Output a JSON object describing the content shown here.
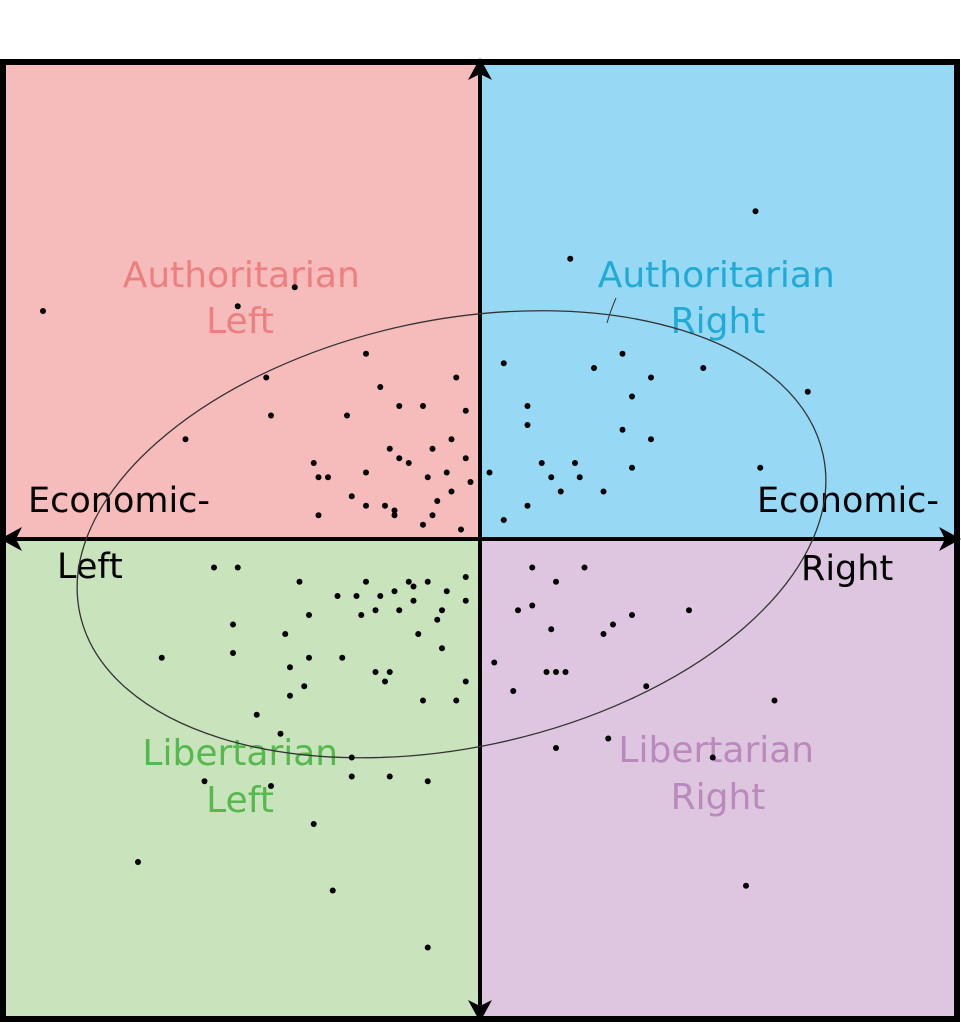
{
  "quadrants": {
    "auth_left": {
      "line1": "Authoritarian",
      "line2": "Left",
      "fill": "#f6bbbb",
      "text_color": "#ee7f7f"
    },
    "auth_right": {
      "line1": "Authoritarian",
      "line2": "Right",
      "fill": "#97d8f5",
      "text_color": "#22aad6"
    },
    "lib_left": {
      "line1": "Libertarian",
      "line2": "Left",
      "fill": "#c9e3bd",
      "text_color": "#55b94d"
    },
    "lib_right": {
      "line1": "Libertarian",
      "line2": "Right",
      "fill": "#dec6e1",
      "text_color": "#b98abb"
    }
  },
  "axes": {
    "left_line1": "Economic-",
    "left_line2": "Left",
    "right_line1": "Economic-",
    "right_line2": "Right"
  },
  "colors": {
    "axis": "#000000",
    "points": "#000000",
    "ellipse": "#333333"
  },
  "scatter": {
    "note": "points in compass units: x economic (-10 left .. 10 right), y social (-10 libertarian .. 10 authoritarian)",
    "points": [
      [
        5.8,
        6.9
      ],
      [
        1.9,
        5.9
      ],
      [
        -5.1,
        4.9
      ],
      [
        -9.2,
        4.8
      ],
      [
        -3.9,
        5.3
      ],
      [
        -2.4,
        3.9
      ],
      [
        -4.5,
        3.4
      ],
      [
        -4.4,
        2.6
      ],
      [
        -2.1,
        3.2
      ],
      [
        -0.5,
        3.4
      ],
      [
        -0.3,
        2.7
      ],
      [
        -0.6,
        2.1
      ],
      [
        -1.0,
        1.9
      ],
      [
        -1.2,
        2.8
      ],
      [
        -1.7,
        2.8
      ],
      [
        -2.8,
        2.6
      ],
      [
        -3.5,
        1.6
      ],
      [
        -6.2,
        2.1
      ],
      [
        -1.7,
        1.7
      ],
      [
        -1.9,
        1.9
      ],
      [
        -0.3,
        1.7
      ],
      [
        -0.7,
        1.4
      ],
      [
        -1.1,
        1.3
      ],
      [
        -1.5,
        1.6
      ],
      [
        -3.2,
        1.3
      ],
      [
        -2.7,
        0.9
      ],
      [
        -2.4,
        1.4
      ],
      [
        -3.4,
        1.3
      ],
      [
        -0.6,
        1.0
      ],
      [
        -0.2,
        1.2
      ],
      [
        -1.8,
        0.6
      ],
      [
        -2.4,
        0.7
      ],
      [
        -3.4,
        0.5
      ],
      [
        -2.0,
        0.7
      ],
      [
        -1.0,
        0.5
      ],
      [
        -0.9,
        0.8
      ],
      [
        -0.4,
        0.2
      ],
      [
        -1.2,
        0.3
      ],
      [
        -1.8,
        0.5
      ],
      [
        -1.5,
        -0.9
      ],
      [
        -2.4,
        -0.9
      ],
      [
        -3.8,
        -0.9
      ],
      [
        -5.1,
        -0.6
      ],
      [
        -5.6,
        -0.6
      ],
      [
        -1.1,
        -0.9
      ],
      [
        -1.4,
        -1.0
      ],
      [
        -1.8,
        -1.1
      ],
      [
        -2.1,
        -1.2
      ],
      [
        -2.6,
        -1.2
      ],
      [
        -3.0,
        -1.2
      ],
      [
        -0.7,
        -1.1
      ],
      [
        -0.3,
        -1.3
      ],
      [
        -0.3,
        -0.8
      ],
      [
        -0.8,
        -1.5
      ],
      [
        -1.4,
        -1.3
      ],
      [
        -1.7,
        -1.5
      ],
      [
        -2.2,
        -1.5
      ],
      [
        -2.5,
        -1.6
      ],
      [
        -3.6,
        -1.6
      ],
      [
        -4.1,
        -2.0
      ],
      [
        -5.2,
        -1.8
      ],
      [
        -0.9,
        -1.7
      ],
      [
        -1.3,
        -2.0
      ],
      [
        -2.9,
        -2.5
      ],
      [
        -3.6,
        -2.5
      ],
      [
        -4.0,
        -2.7
      ],
      [
        -5.2,
        -2.4
      ],
      [
        -6.7,
        -2.5
      ],
      [
        -3.7,
        -3.1
      ],
      [
        -4.0,
        -3.3
      ],
      [
        -4.7,
        -3.7
      ],
      [
        -0.5,
        -3.4
      ],
      [
        -2.0,
        -3.0
      ],
      [
        -0.3,
        -3.0
      ],
      [
        -1.2,
        -3.4
      ],
      [
        -4.2,
        -4.1
      ],
      [
        -2.7,
        -4.6
      ],
      [
        -2.7,
        -5.0
      ],
      [
        -5.8,
        -5.1
      ],
      [
        -4.4,
        -5.2
      ],
      [
        -1.1,
        -5.1
      ],
      [
        -1.9,
        -5.0
      ],
      [
        -3.1,
        -7.4
      ],
      [
        -3.5,
        -6.0
      ],
      [
        -7.2,
        -6.8
      ],
      [
        -1.1,
        -8.6
      ],
      [
        -0.8,
        -2.3
      ],
      [
        0.3,
        -2.6
      ],
      [
        -1.9,
        -2.8
      ],
      [
        -2.2,
        -2.8
      ],
      [
        0.8,
        -1.5
      ],
      [
        1.1,
        -0.6
      ],
      [
        1.1,
        -1.4
      ],
      [
        1.6,
        -0.9
      ],
      [
        2.2,
        -0.6
      ],
      [
        3.2,
        -1.6
      ],
      [
        2.8,
        -1.8
      ],
      [
        1.5,
        -1.9
      ],
      [
        2.6,
        -2.0
      ],
      [
        4.4,
        -1.5
      ],
      [
        1.4,
        -2.8
      ],
      [
        1.6,
        -2.8
      ],
      [
        1.8,
        -2.8
      ],
      [
        0.7,
        -3.2
      ],
      [
        3.5,
        -3.1
      ],
      [
        6.2,
        -3.4
      ],
      [
        1.6,
        -4.4
      ],
      [
        2.7,
        -4.2
      ],
      [
        4.9,
        -4.6
      ],
      [
        5.6,
        -7.3
      ],
      [
        0.5,
        3.7
      ],
      [
        1.0,
        2.8
      ],
      [
        1.0,
        2.4
      ],
      [
        2.4,
        3.6
      ],
      [
        3.0,
        3.9
      ],
      [
        3.2,
        3.0
      ],
      [
        3.6,
        3.4
      ],
      [
        4.7,
        3.6
      ],
      [
        6.9,
        3.1
      ],
      [
        3.6,
        2.1
      ],
      [
        3.0,
        2.3
      ],
      [
        1.3,
        1.6
      ],
      [
        0.2,
        1.4
      ],
      [
        1.5,
        1.3
      ],
      [
        2.0,
        1.6
      ],
      [
        1.7,
        1.0
      ],
      [
        2.1,
        1.3
      ],
      [
        2.6,
        1.0
      ],
      [
        0.5,
        0.4
      ],
      [
        1.0,
        0.7
      ],
      [
        5.9,
        1.5
      ],
      [
        3.2,
        1.5
      ]
    ],
    "ellipse": {
      "cx": -0.6,
      "cy": 0.1,
      "rx": 8.0,
      "ry": 4.5,
      "rotation_deg": -12
    }
  }
}
